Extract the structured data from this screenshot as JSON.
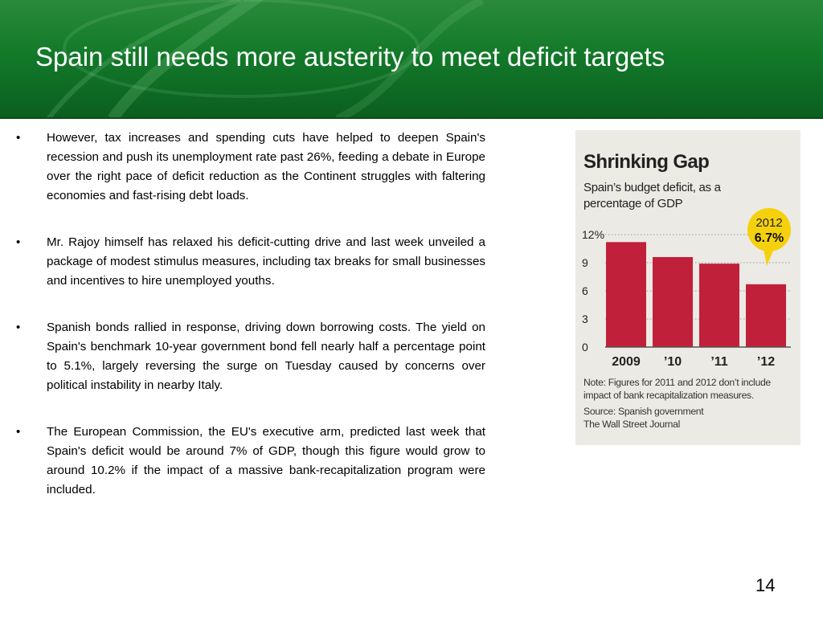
{
  "slide": {
    "title": "Spain still needs more austerity to meet deficit targets",
    "page_number": "14"
  },
  "bullets": [
    "However, tax increases and spending cuts have helped to deepen Spain's recession and push its unemployment rate past 26%, feeding a debate in Europe over the right pace of deficit reduction as the Continent struggles with faltering economies and fast-rising debt loads.",
    "Mr. Rajoy himself has relaxed his deficit-cutting drive and last week unveiled a package of modest stimulus measures, including tax breaks for small businesses and incentives to hire unemployed youths.",
    "Spanish bonds rallied in response, driving down borrowing costs. The yield on Spain's benchmark 10-year government bond fell nearly half a percentage point to 5.1%, largely reversing the surge on Tuesday caused by concerns over political instability in nearby Italy.",
    "The European Commission, the EU's executive arm, predicted last week that Spain's deficit would be around 7% of GDP, though this figure would grow to around 10.2% if the impact of a massive bank-recapitalization program were included."
  ],
  "bullet_symbol": "•",
  "chart_data": {
    "type": "bar",
    "title": "Shrinking Gap",
    "subtitle": "Spain’s budget deficit, as a percentage of GDP",
    "categories": [
      "2009",
      "’10",
      "’11",
      "’12"
    ],
    "values": [
      11.2,
      9.6,
      8.9,
      6.7
    ],
    "yticks": [
      "0",
      "3",
      "6",
      "9",
      "12%"
    ],
    "ytick_values": [
      0,
      3,
      6,
      9,
      12
    ],
    "ylim": [
      0,
      12
    ],
    "callout": {
      "year": "2012",
      "value": "6.7%"
    },
    "note": "Note: Figures for 2011 and 2012 don’t include impact of bank recapitalization measures.",
    "source": "Source: Spanish government",
    "publisher": "The Wall Street Journal",
    "bar_color": "#c0203a",
    "callout_color": "#f5d10d"
  }
}
